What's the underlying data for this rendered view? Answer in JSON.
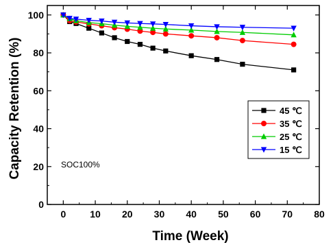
{
  "chart_data": {
    "type": "line",
    "xlabel": "Time (Week)",
    "ylabel": "Capacity Retention (%)",
    "xlim": [
      -5,
      80
    ],
    "ylim": [
      0,
      105
    ],
    "xticks": [
      0,
      10,
      20,
      30,
      40,
      50,
      60,
      70,
      80
    ],
    "yticks": [
      0,
      20,
      40,
      60,
      80,
      100
    ],
    "grid": false,
    "legend_position": "right",
    "annotation": "SOC100%",
    "x": [
      0,
      2,
      4,
      8,
      12,
      16,
      20,
      24,
      28,
      32,
      40,
      48,
      56,
      72
    ],
    "series": [
      {
        "name": "45 ℃",
        "color": "#000000",
        "marker": "square",
        "values": [
          100,
          96.5,
          95.5,
          93,
          90.5,
          88,
          86,
          84.5,
          82.5,
          81,
          78.5,
          76.5,
          74,
          71
        ]
      },
      {
        "name": "35 ℃",
        "color": "#ff0000",
        "marker": "circle",
        "values": [
          100,
          97,
          96.3,
          95.3,
          94.3,
          93.3,
          92.5,
          91.5,
          90.8,
          90,
          89,
          88,
          86.5,
          84.5
        ]
      },
      {
        "name": "25 ℃",
        "color": "#00cc00",
        "marker": "triangle-up",
        "values": [
          100,
          98,
          97,
          96,
          95.4,
          94.6,
          94,
          93.5,
          93,
          92.6,
          92,
          91.3,
          90.8,
          89.5
        ]
      },
      {
        "name": "15 ℃",
        "color": "#0000ff",
        "marker": "triangle-down",
        "values": [
          100,
          98.2,
          97.8,
          97.2,
          96.8,
          96.2,
          95.8,
          95.5,
          95.3,
          95,
          94.3,
          93.8,
          93.5,
          93
        ]
      }
    ]
  }
}
